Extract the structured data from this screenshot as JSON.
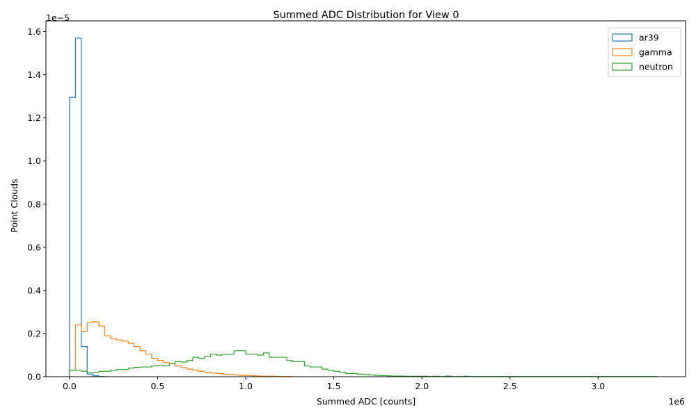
{
  "chart_data": {
    "type": "histogram-step",
    "title": "Summed ADC Distribution for View 0",
    "xlabel": "Summed ADC [counts]",
    "ylabel": "Point Clouds",
    "x_offset_text": "1e6",
    "y_offset_text": "1e−5",
    "xlim": [
      -0.1339,
      3.4965
    ],
    "ylim": [
      0,
      1.65
    ],
    "x_ticks": [
      0.0,
      0.5,
      1.0,
      1.5,
      2.0,
      2.5,
      3.0
    ],
    "x_tick_labels": [
      "0.0",
      "0.5",
      "1.0",
      "1.5",
      "2.0",
      "2.5",
      "3.0"
    ],
    "y_ticks": [
      0.0,
      0.2,
      0.4,
      0.6,
      0.8,
      1.0,
      1.2,
      1.4,
      1.6
    ],
    "y_tick_labels": [
      "0.0",
      "0.2",
      "0.4",
      "0.6",
      "0.8",
      "1.0",
      "1.2",
      "1.4",
      "1.6"
    ],
    "legend_position": "upper right",
    "series": [
      {
        "name": "ar39",
        "color": "#1f77b4",
        "edges": [
          0.0,
          0.0333,
          0.0666,
          0.1,
          0.1333,
          0.1666,
          0.2
        ],
        "values": [
          1.295,
          1.57,
          0.14,
          0.012,
          0.004,
          0.001
        ]
      },
      {
        "name": "gamma",
        "color": "#ff7f0e",
        "edges": [
          0.0,
          0.0333,
          0.0666,
          0.1,
          0.1333,
          0.1666,
          0.2,
          0.2333,
          0.2666,
          0.3,
          0.3333,
          0.3666,
          0.4,
          0.4333,
          0.4666,
          0.5,
          0.5333,
          0.5666,
          0.6,
          0.6333,
          0.6666,
          0.7,
          0.7333,
          0.7666,
          0.8,
          0.8333,
          0.8666,
          0.9,
          0.9333,
          0.9666,
          1.0,
          1.0333,
          1.0666,
          1.1,
          1.1333,
          1.1666,
          1.2,
          1.2333,
          1.2666
        ],
        "values": [
          0.03,
          0.24,
          0.21,
          0.25,
          0.255,
          0.235,
          0.19,
          0.175,
          0.17,
          0.165,
          0.155,
          0.14,
          0.12,
          0.105,
          0.085,
          0.075,
          0.065,
          0.06,
          0.05,
          0.042,
          0.035,
          0.03,
          0.025,
          0.02,
          0.017,
          0.015,
          0.012,
          0.01,
          0.008,
          0.006,
          0.005,
          0.004,
          0.003,
          0.002,
          0.002,
          0.001,
          0.001,
          0.001
        ]
      },
      {
        "name": "neutron",
        "color": "#2ca02c",
        "edges": [
          0.0,
          0.0333,
          0.0666,
          0.1,
          0.1333,
          0.1666,
          0.2,
          0.2333,
          0.2666,
          0.3,
          0.3333,
          0.3666,
          0.4,
          0.4333,
          0.4666,
          0.5,
          0.5333,
          0.5666,
          0.6,
          0.6333,
          0.6666,
          0.7,
          0.7333,
          0.7666,
          0.8,
          0.8333,
          0.8666,
          0.9,
          0.9333,
          0.9666,
          1.0,
          1.0333,
          1.0666,
          1.1,
          1.1333,
          1.1666,
          1.2,
          1.2333,
          1.2666,
          1.3,
          1.3333,
          1.3666,
          1.4,
          1.4333,
          1.4666,
          1.5,
          1.5333,
          1.5666,
          1.6,
          1.6333,
          1.6666,
          1.7,
          1.7333,
          1.7666,
          1.8,
          1.8333,
          1.8666,
          1.9,
          1.9333,
          1.9666,
          2.0,
          2.0333,
          2.0666,
          2.1,
          2.1333,
          2.1666,
          2.2,
          2.2333,
          2.2666,
          2.3,
          2.3333,
          2.3666,
          2.4,
          2.4333,
          2.4666,
          2.5,
          2.5333,
          2.5666,
          2.6,
          2.6333,
          2.6666,
          2.7,
          2.7333,
          2.7666,
          2.8,
          2.8333,
          2.8666,
          2.9,
          2.9333,
          2.9666,
          3.0,
          3.0333,
          3.0666,
          3.1,
          3.1333,
          3.1666,
          3.2,
          3.2333,
          3.2666,
          3.3333
        ],
        "values": [
          0.03,
          0.03,
          0.025,
          0.02,
          0.02,
          0.025,
          0.025,
          0.03,
          0.033,
          0.033,
          0.04,
          0.043,
          0.045,
          0.045,
          0.05,
          0.052,
          0.05,
          0.06,
          0.07,
          0.068,
          0.075,
          0.09,
          0.085,
          0.095,
          0.105,
          0.1,
          0.103,
          0.105,
          0.12,
          0.12,
          0.105,
          0.105,
          0.1,
          0.11,
          0.09,
          0.09,
          0.09,
          0.075,
          0.07,
          0.07,
          0.05,
          0.045,
          0.045,
          0.035,
          0.03,
          0.025,
          0.02,
          0.015,
          0.015,
          0.012,
          0.01,
          0.008,
          0.006,
          0.005,
          0.004,
          0.003,
          0.003,
          0.002,
          0.002,
          0.002,
          0.002,
          0.001,
          0.002,
          0.001,
          0.003,
          0.001,
          0.001,
          0.002,
          0.001,
          0.001,
          0.001,
          0.001,
          0.001,
          0.001,
          0.001,
          0.001,
          0.001,
          0.001,
          0.001,
          0.001,
          0.001,
          0.001,
          0.001,
          0.001,
          0.001,
          0.001,
          0.001,
          0.001,
          0.001,
          0.001,
          0.001,
          0.001,
          0.001,
          0.001,
          0.001,
          0.001,
          0.001,
          0.001,
          0.001
        ]
      }
    ]
  }
}
